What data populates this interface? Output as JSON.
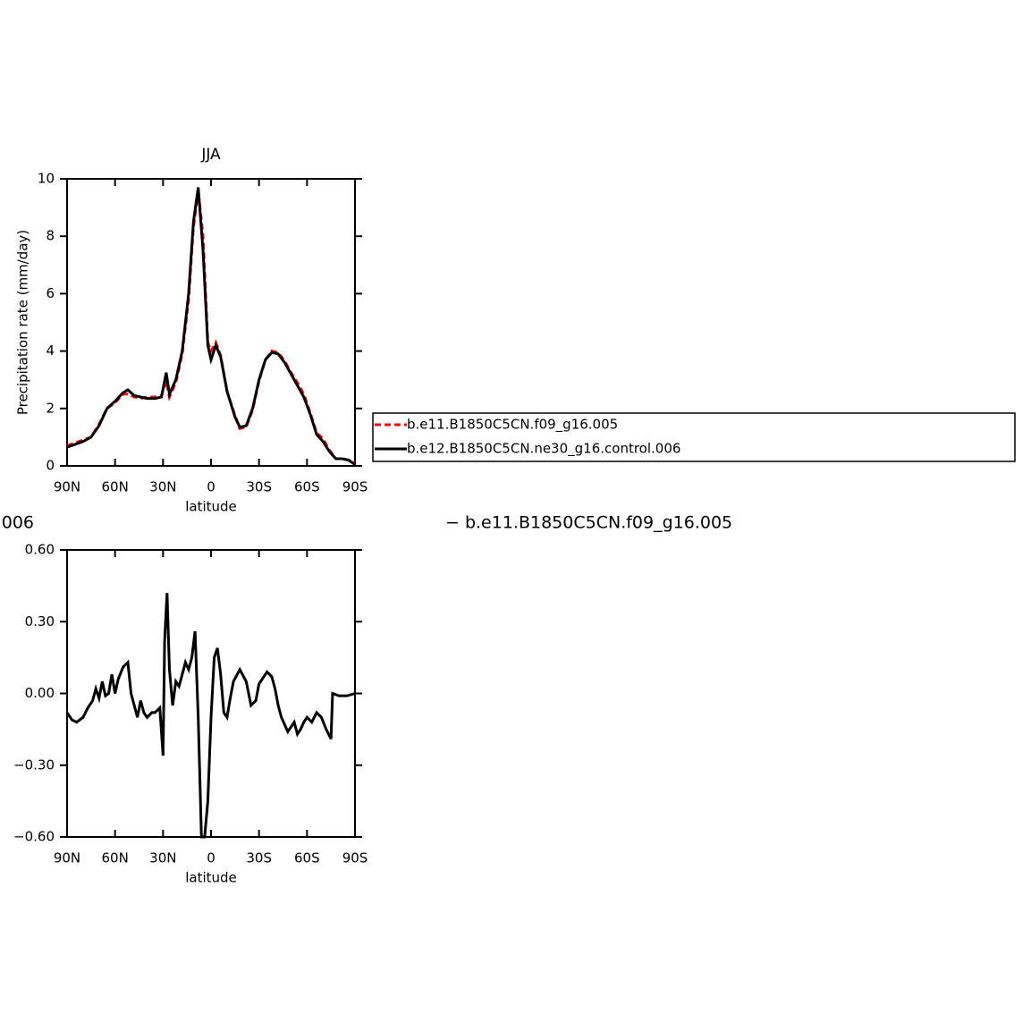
{
  "chart_data": [
    {
      "type": "line",
      "title": "JJA",
      "y_label": "Precipitation rate (mm/day)",
      "x_label": "latitude",
      "x": [
        90,
        85,
        80,
        75,
        70,
        65,
        60,
        55,
        52,
        48,
        44,
        40,
        35,
        31,
        28,
        26,
        22,
        18,
        14,
        11,
        8,
        5,
        2,
        0,
        -3,
        -6,
        -10,
        -15,
        -18,
        -22,
        -26,
        -30,
        -34,
        -38,
        -42,
        -46,
        -50,
        -54,
        -58,
        -62,
        -66,
        -70,
        -74,
        -78,
        -82,
        -86,
        -90
      ],
      "series": [
        {
          "name": "b.e11.B1850C5CN.f09_g16.005",
          "color": "#ff0000",
          "dashed": true,
          "values": [
            0.7,
            0.8,
            0.9,
            1.0,
            1.45,
            2.0,
            2.2,
            2.5,
            2.5,
            2.4,
            2.35,
            2.4,
            2.4,
            2.45,
            2.95,
            2.4,
            2.9,
            3.9,
            5.8,
            8.3,
            9.6,
            8.0,
            4.3,
            4.0,
            4.3,
            3.85,
            2.6,
            1.75,
            1.3,
            1.35,
            1.95,
            2.95,
            3.7,
            4.0,
            3.95,
            3.65,
            3.25,
            2.9,
            2.5,
            1.85,
            1.15,
            0.95,
            0.55,
            0.25,
            0.25,
            0.2,
            0.1
          ]
        },
        {
          "name": "b.e12.B1850C5CN.ne30_g16.control.006",
          "color": "#000000",
          "dashed": false,
          "values": [
            0.65,
            0.75,
            0.85,
            1.0,
            1.4,
            2.0,
            2.25,
            2.55,
            2.65,
            2.45,
            2.4,
            2.35,
            2.35,
            2.4,
            3.25,
            2.5,
            3.0,
            4.0,
            6.0,
            8.5,
            9.7,
            7.5,
            4.2,
            3.7,
            4.2,
            3.8,
            2.6,
            1.7,
            1.35,
            1.4,
            2.0,
            3.0,
            3.7,
            3.95,
            3.9,
            3.6,
            3.2,
            2.8,
            2.4,
            1.8,
            1.1,
            0.85,
            0.5,
            0.25,
            0.25,
            0.2,
            0.05
          ]
        }
      ],
      "xlim": [
        90,
        -90
      ],
      "xticks": [
        {
          "value": 90,
          "label": "90N"
        },
        {
          "value": 60,
          "label": "60N"
        },
        {
          "value": 30,
          "label": "30N"
        },
        0,
        {
          "value": -30,
          "label": "30S"
        },
        {
          "value": -60,
          "label": "60S"
        },
        {
          "value": -90,
          "label": "90S"
        }
      ],
      "ylim": [
        0,
        10
      ],
      "yticks": [
        0,
        2,
        4,
        6,
        8,
        10
      ],
      "legend": "right"
    },
    {
      "type": "line",
      "x_label": "latitude",
      "annotations": [
        "006",
        "− b.e11.B1850C5CN.f09_g16.005"
      ],
      "x": [
        90,
        87,
        84,
        80,
        77,
        74,
        72,
        70,
        68,
        66,
        64,
        62,
        60,
        58,
        55,
        52,
        50,
        48,
        46,
        44,
        42,
        40,
        37,
        35,
        32,
        30,
        29,
        27.5,
        26,
        24,
        22,
        20,
        18,
        16,
        14,
        12,
        10,
        8,
        6,
        4,
        2,
        0,
        -2,
        -4,
        -6,
        -8,
        -10,
        -12,
        -14,
        -18,
        -22,
        -25,
        -28,
        -30,
        -32,
        -35,
        -38,
        -40,
        -42,
        -44,
        -48,
        -52,
        -54,
        -56,
        -58,
        -60,
        -63,
        -66,
        -69,
        -72,
        -75,
        -76,
        -80,
        -85,
        -90
      ],
      "series": [
        {
          "color": "#000000",
          "dashed": false,
          "values": [
            -0.08,
            -0.11,
            -0.12,
            -0.1,
            -0.06,
            -0.03,
            0.02,
            -0.02,
            0.05,
            -0.01,
            0.0,
            0.08,
            0.0,
            0.06,
            0.11,
            0.13,
            0.0,
            -0.05,
            -0.1,
            -0.03,
            -0.08,
            -0.1,
            -0.08,
            -0.08,
            -0.06,
            -0.26,
            0.22,
            0.42,
            0.1,
            -0.05,
            0.05,
            0.03,
            0.08,
            0.13,
            0.1,
            0.15,
            0.26,
            -0.1,
            -0.6,
            -0.6,
            -0.45,
            -0.1,
            0.15,
            0.19,
            0.08,
            -0.08,
            -0.1,
            -0.02,
            0.05,
            0.1,
            0.05,
            -0.05,
            -0.03,
            0.04,
            0.06,
            0.09,
            0.07,
            0.02,
            -0.05,
            -0.1,
            -0.16,
            -0.12,
            -0.17,
            -0.15,
            -0.12,
            -0.1,
            -0.12,
            -0.08,
            -0.1,
            -0.15,
            -0.19,
            0.0,
            -0.01,
            -0.01,
            0.0
          ]
        }
      ],
      "xlim": [
        90,
        -90
      ],
      "xticks": [
        {
          "value": 90,
          "label": "90N"
        },
        {
          "value": 60,
          "label": "60N"
        },
        {
          "value": 30,
          "label": "30N"
        },
        0,
        {
          "value": -30,
          "label": "30S"
        },
        {
          "value": -60,
          "label": "60S"
        },
        {
          "value": -90,
          "label": "90S"
        }
      ],
      "ylim": [
        -0.6,
        0.6
      ],
      "yticks": [
        {
          "value": -0.6,
          "label": "−0.60"
        },
        {
          "value": -0.3,
          "label": "−0.30"
        },
        {
          "value": 0,
          "label": "0.00"
        },
        {
          "value": 0.3,
          "label": "0.30"
        },
        {
          "value": 0.6,
          "label": "0.60"
        }
      ]
    }
  ]
}
